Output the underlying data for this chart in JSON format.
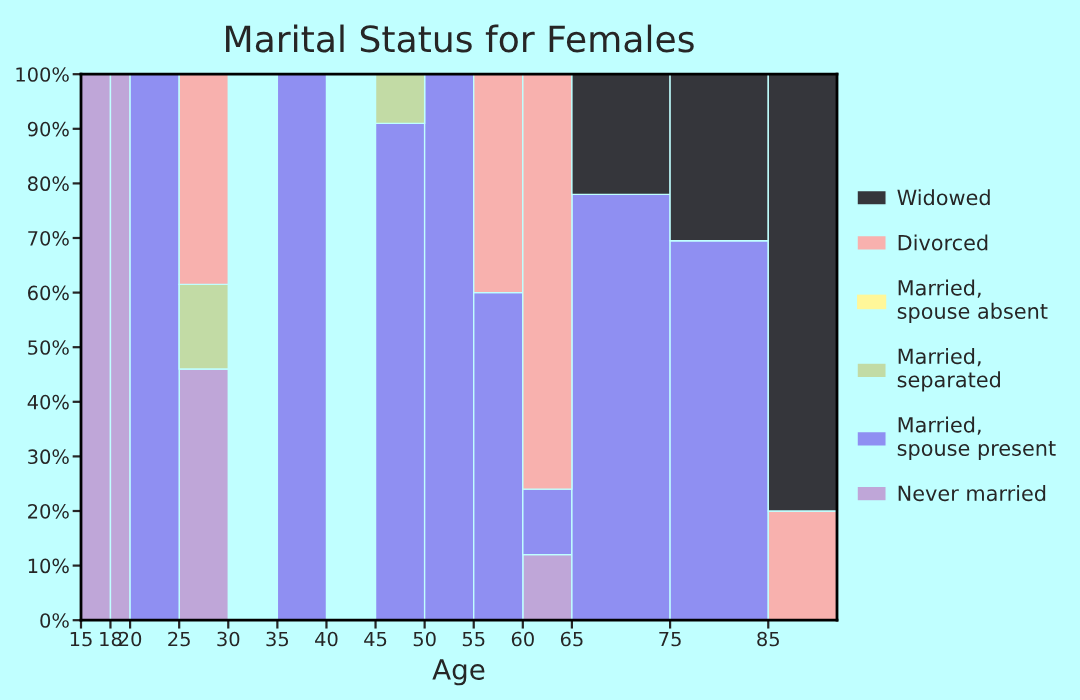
{
  "chart_data": {
    "type": "bar",
    "stacked": true,
    "title": "Marital Status for Females",
    "xlabel": "Age",
    "x": [
      16.5,
      19,
      22.5,
      27.5,
      32.5,
      37.5,
      42.5,
      47.5,
      52.5,
      57.5,
      62.5,
      70,
      80,
      88.5
    ],
    "series": [
      {
        "name": "Never married",
        "color": "#bfa6d8",
        "values": [
          100,
          100,
          0,
          46,
          0,
          0,
          0,
          0,
          0,
          0,
          12,
          0,
          0,
          0
        ]
      },
      {
        "name": "Married,\nspouse present",
        "color": "#8f8ff2",
        "values": [
          0,
          0,
          100,
          0,
          0,
          100,
          0,
          91,
          100,
          60,
          12,
          78,
          69.5,
          0
        ]
      },
      {
        "name": "Married,\nseparated",
        "color": "#c2dba5",
        "values": [
          0,
          0,
          0,
          15.5,
          0,
          0,
          0,
          9,
          0,
          0,
          0,
          0,
          0,
          0
        ]
      },
      {
        "name": "Married,\nspouse absent",
        "color": "#fff799",
        "values": [
          0,
          0,
          0,
          0,
          0,
          0,
          0,
          0,
          0,
          0,
          0,
          0,
          0,
          0
        ]
      },
      {
        "name": "Divorced",
        "color": "#f8b1ae",
        "values": [
          0,
          0,
          0,
          38.5,
          0,
          0,
          0,
          0,
          0,
          40,
          76,
          0,
          0,
          20
        ]
      },
      {
        "name": "Widowed",
        "color": "#35363b",
        "values": [
          0,
          0,
          0,
          0,
          0,
          0,
          0,
          0,
          0,
          0,
          0,
          22,
          30.5,
          80
        ]
      }
    ],
    "xlim": [
      15,
      92
    ],
    "xticks": [
      15,
      18,
      20,
      25,
      30,
      35,
      40,
      45,
      50,
      55,
      60,
      65,
      75,
      85
    ],
    "ylim": [
      0,
      100
    ],
    "yticks": [
      {
        "value": 0,
        "label": "0%"
      },
      {
        "value": 10,
        "label": "10%"
      },
      {
        "value": 20,
        "label": "20%"
      },
      {
        "value": 30,
        "label": "30%"
      },
      {
        "value": 40,
        "label": "40%"
      },
      {
        "value": 50,
        "label": "50%"
      },
      {
        "value": 60,
        "label": "60%"
      },
      {
        "value": 70,
        "label": "70%"
      },
      {
        "value": 80,
        "label": "80%"
      },
      {
        "value": 90,
        "label": "90%"
      },
      {
        "value": 100,
        "label": "100%"
      }
    ],
    "grid": false,
    "legend": "right"
  }
}
